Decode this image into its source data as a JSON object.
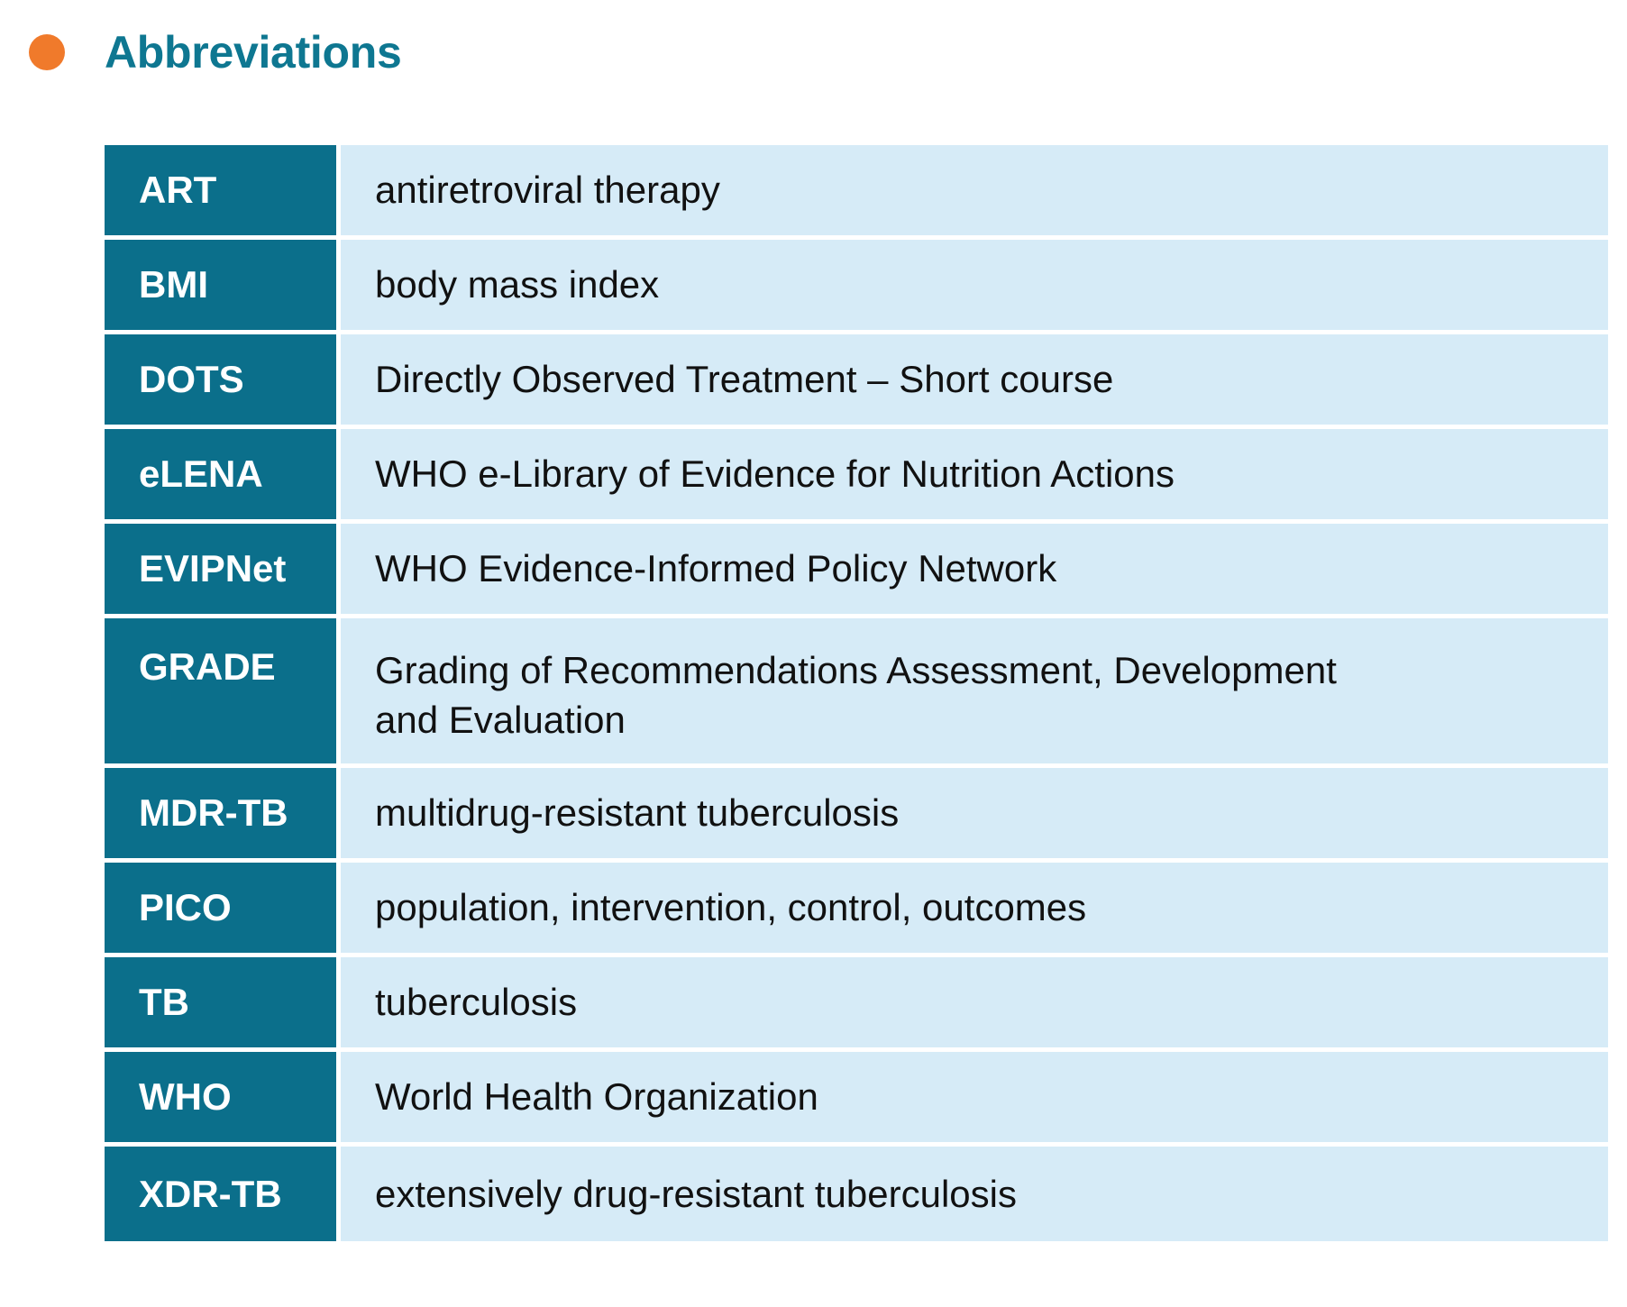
{
  "header": {
    "title": "Abbreviations"
  },
  "colors": {
    "bullet": "#f07a2b",
    "title": "#0e7791",
    "abbr_bg": "#0b6f8b",
    "def_bg": "#d6ebf7"
  },
  "abbreviations": [
    {
      "abbr": "ART",
      "definition": "antiretroviral therapy"
    },
    {
      "abbr": "BMI",
      "definition": "body mass index"
    },
    {
      "abbr": "DOTS",
      "definition": "Directly Observed Treatment – Short course"
    },
    {
      "abbr": "eLENA",
      "definition": "WHO e-Library of Evidence for Nutrition Actions"
    },
    {
      "abbr": "EVIPNet",
      "definition": "WHO Evidence-Informed Policy Network"
    },
    {
      "abbr": "GRADE",
      "definition": "Grading of Recommendations Assessment, Development and Evaluation"
    },
    {
      "abbr": "MDR-TB",
      "definition": "multidrug-resistant tuberculosis"
    },
    {
      "abbr": "PICO",
      "definition": "population, intervention, control, outcomes"
    },
    {
      "abbr": "TB",
      "definition": "tuberculosis"
    },
    {
      "abbr": "WHO",
      "definition": "World Health Organization"
    },
    {
      "abbr": "XDR-TB",
      "definition": "extensively drug-resistant tuberculosis"
    }
  ]
}
